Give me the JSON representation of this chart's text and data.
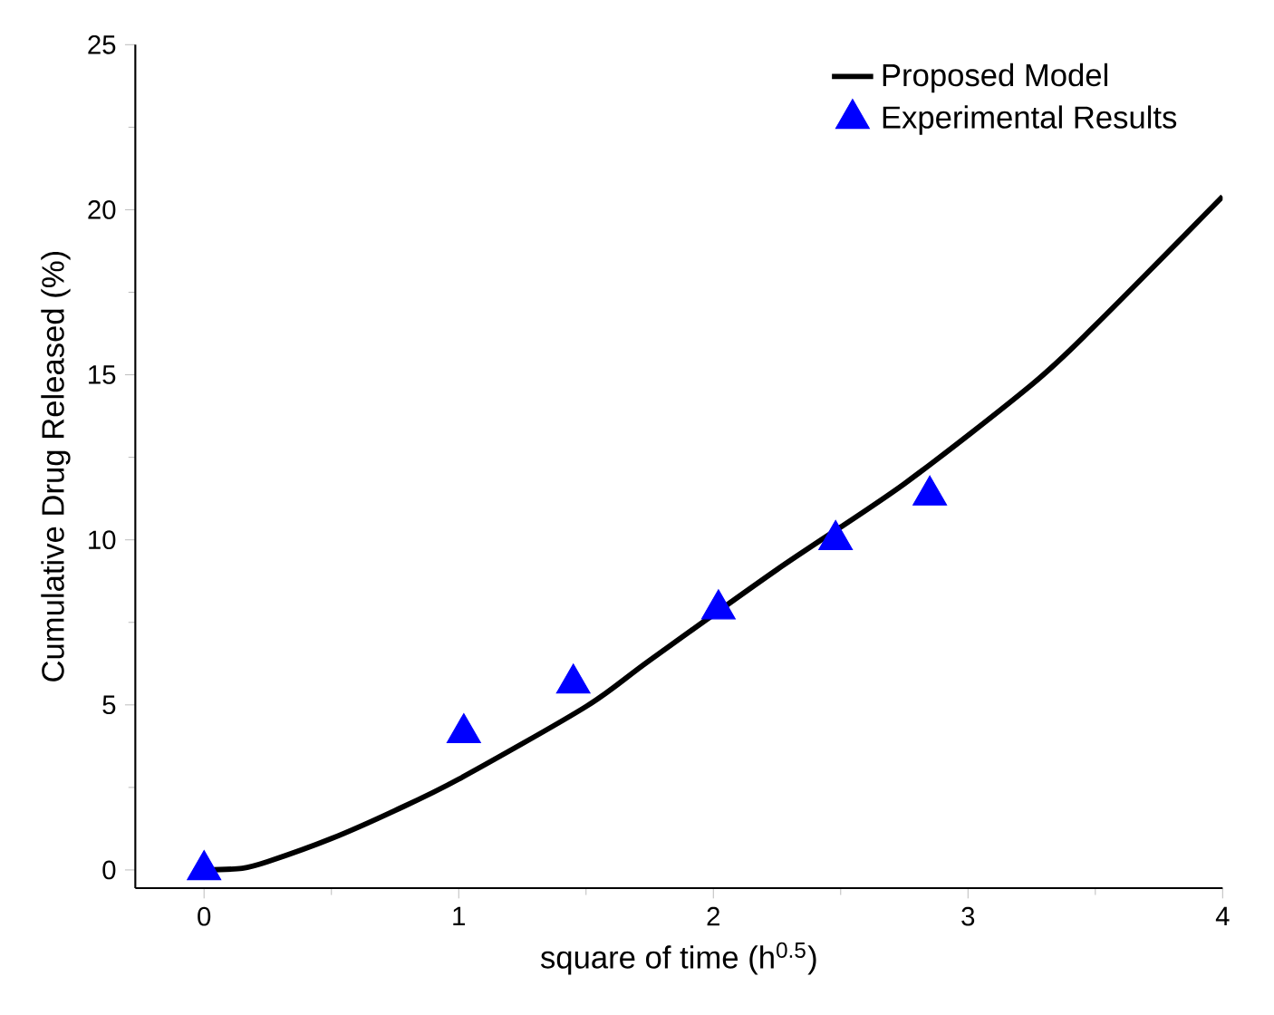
{
  "chart_data": {
    "type": "line",
    "xlabel": "square of time (h$^{0.5}$)",
    "ylabel": "Cumulative Drug Released (%)",
    "xlim": [
      -0.27,
      4
    ],
    "ylim": [
      -0.55,
      25
    ],
    "xticks": [
      0,
      1,
      2,
      3,
      4
    ],
    "yticks": [
      0,
      5,
      10,
      15,
      20,
      25
    ],
    "grid": false,
    "legend": "top right",
    "series": [
      {
        "name": "Proposed Model",
        "color": "#000000",
        "marker": "none",
        "line_style": "solid",
        "x": [
          0,
          0.15,
          0.25,
          0.5,
          0.75,
          1,
          1.5,
          1.75,
          2.25,
          2.75,
          3.25,
          3.5,
          4
        ],
        "values": [
          0,
          0.05,
          0.25,
          0.95,
          1.8,
          2.75,
          4.95,
          6.35,
          9.1,
          11.7,
          14.7,
          16.5,
          20.4
        ]
      },
      {
        "name": "Experimental Results",
        "type": "scatter",
        "color": "#0000ff",
        "marker": "triangle",
        "x": [
          0,
          1.02,
          1.45,
          2.02,
          2.48,
          2.85
        ],
        "values": [
          0,
          4.15,
          5.65,
          7.9,
          10.0,
          11.35
        ]
      }
    ]
  }
}
